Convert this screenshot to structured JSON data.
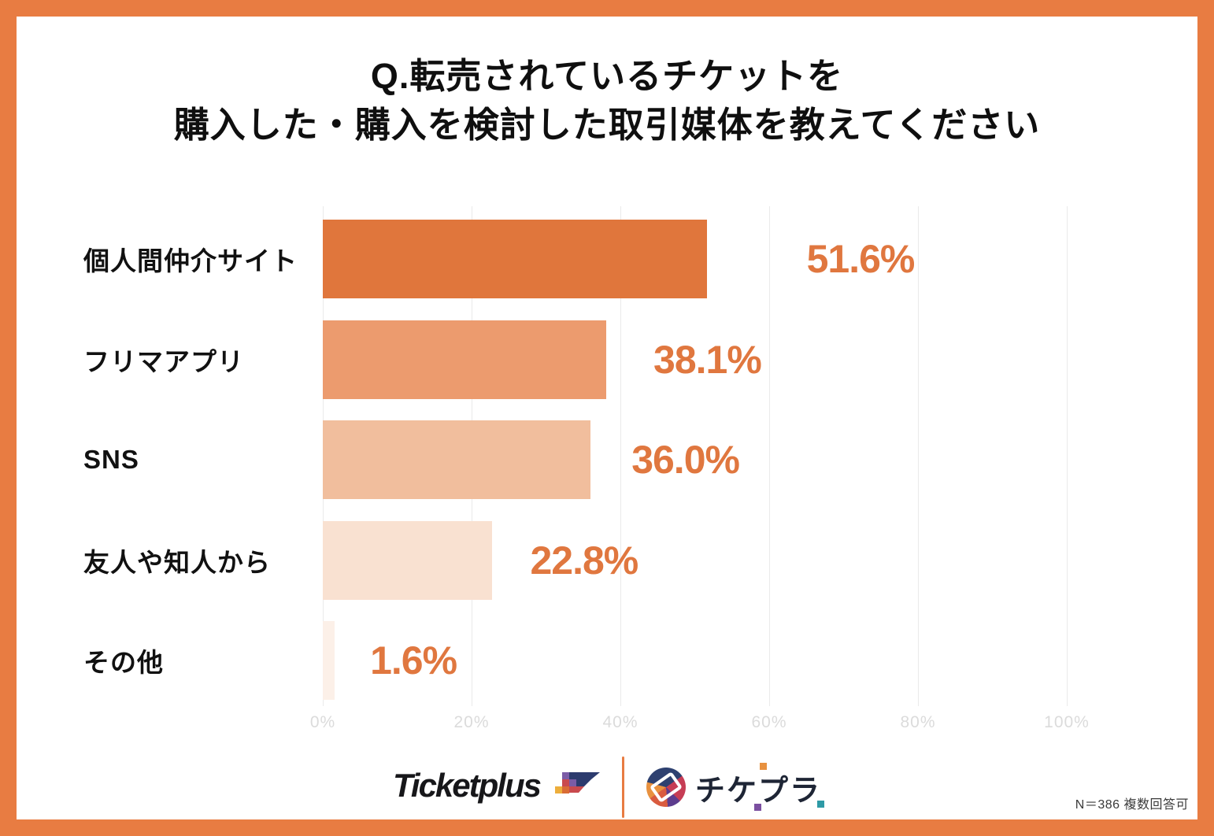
{
  "title": {
    "line1": "Q.転売されているチケットを",
    "line2": "購入した・購入を検討した取引媒体を教えてください"
  },
  "chart_data": {
    "type": "bar",
    "orientation": "horizontal",
    "title": "Q.転売されているチケットを 購入した・購入を検討した取引媒体を教えてください",
    "categories": [
      "個人間仲介サイト",
      "フリマアプリ",
      "SNS",
      "友人や知人から",
      "その他"
    ],
    "values": [
      51.6,
      38.1,
      36.0,
      22.8,
      1.6
    ],
    "value_labels": [
      "51.6%",
      "38.1%",
      "36.0%",
      "22.8%",
      "1.6%"
    ],
    "bar_colors": [
      "#E0763C",
      "#EC9B6E",
      "#F1BE9D",
      "#F9E1D1",
      "#FCF0E8"
    ],
    "x_ticks": [
      "0%",
      "20%",
      "40%",
      "60%",
      "80%",
      "100%"
    ],
    "xlim": [
      0,
      100
    ],
    "grid": true,
    "legend": false,
    "value_label_color": "#E0773F",
    "gridline_color": "#EAEAEA",
    "tick_label_color": "#DBDBDB"
  },
  "colors": {
    "frame": "#E87C42",
    "title_text": "#0F0F0F",
    "category_text": "#111111"
  },
  "footer": {
    "brand_left": "Ticketplus",
    "brand_right": "チケプラ",
    "note": "N＝386 複数回答可"
  }
}
